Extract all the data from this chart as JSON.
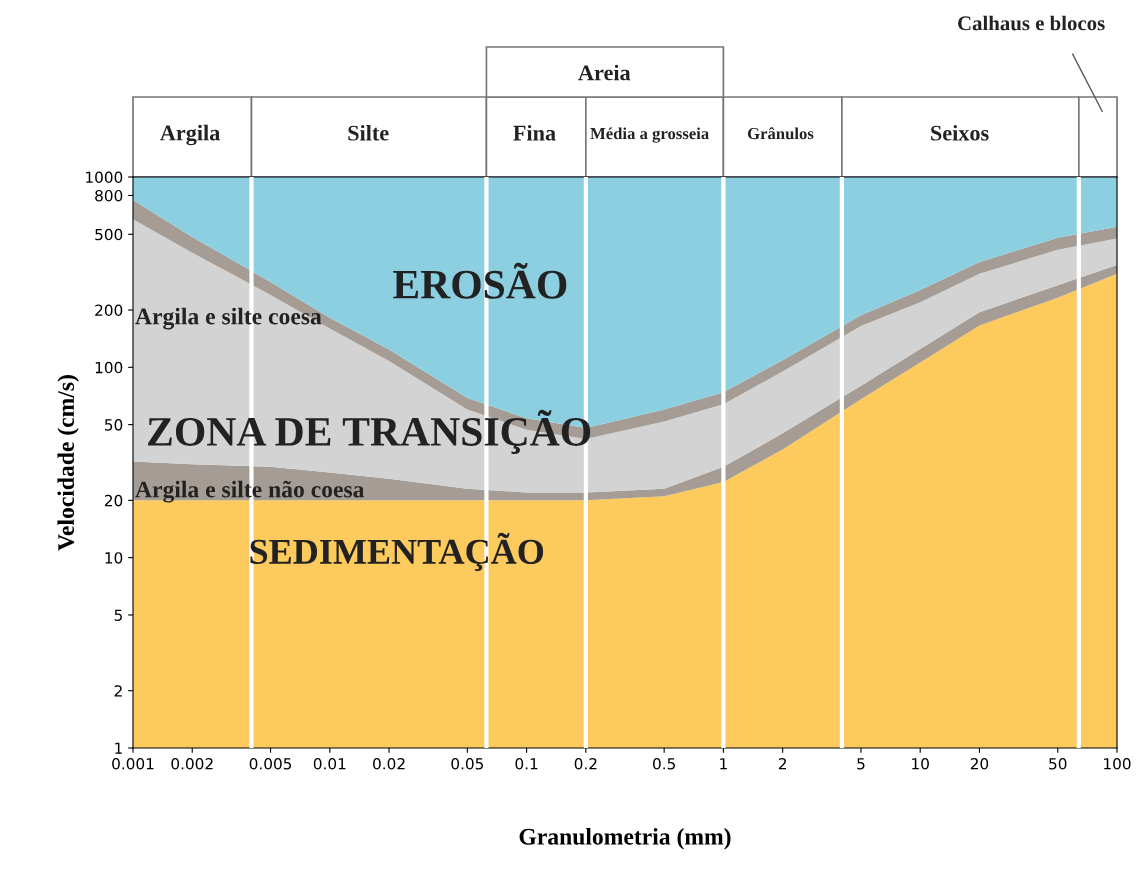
{
  "chart_data": {
    "type": "area",
    "xlabel": "Granulometria (mm)",
    "ylabel": "Velocidade (cm/s)",
    "log": "xy",
    "x": [
      0.001,
      0.002,
      0.005,
      0.01,
      0.02,
      0.05,
      0.1,
      0.2,
      0.5,
      1,
      2,
      5,
      10,
      20,
      50,
      100
    ],
    "series": [
      {
        "color": "#fdca5e",
        "values": [
          20,
          20,
          20,
          20,
          20,
          20,
          20,
          20,
          21,
          25,
          37,
          68,
          106,
          166,
          232,
          310
        ]
      },
      {
        "color": "#a59d95",
        "values": [
          12,
          11,
          10,
          8,
          6,
          3,
          2,
          2,
          2,
          5,
          8,
          12,
          19,
          29,
          38,
          35
        ]
      },
      {
        "color": "#d3d3d3",
        "values": [
          568,
          369,
          210,
          132,
          82,
          37,
          25,
          20,
          29,
          34,
          50,
          85,
          95,
          115,
          145,
          130
        ]
      },
      {
        "color": "#a59d95",
        "values": [
          158,
          84,
          41,
          22,
          16,
          9,
          7,
          6,
          8,
          10,
          14,
          23,
          35,
          48,
          64,
          72
        ]
      },
      {
        "color": "#8ccfe0",
        "values": [
          242,
          516,
          719,
          818,
          876,
          931,
          946,
          952,
          940,
          926,
          891,
          812,
          745,
          642,
          521,
          453
        ]
      }
    ],
    "stacked": true,
    "xlim": [
      0.001,
      100
    ],
    "ylim": [
      1,
      1000
    ],
    "xticks": [
      0.001,
      0.002,
      0.005,
      0.01,
      0.02,
      0.05,
      0.1,
      0.2,
      0.5,
      1,
      2,
      5,
      10,
      20,
      50,
      100
    ],
    "yticks": [
      1,
      2,
      5,
      10,
      20,
      50,
      100,
      200,
      500,
      800,
      1000
    ],
    "ref_lines": [
      {
        "axis": "x",
        "value": 0.004,
        "color": "#ffffff"
      },
      {
        "axis": "x",
        "value": 0.0625,
        "color": "#ffffff"
      },
      {
        "axis": "x",
        "value": 0.2,
        "color": "#ffffff"
      },
      {
        "axis": "x",
        "value": 1,
        "color": "#ffffff"
      },
      {
        "axis": "x",
        "value": 4,
        "color": "#ffffff"
      },
      {
        "axis": "x",
        "value": 64,
        "color": "#ffffff"
      }
    ],
    "annotations": [
      "EROSÃO",
      "Argila e silte coesa",
      "ZONA DE TRANSIÇÃO",
      "Argila e silte não coesa",
      "SEDIMENTAÇÃO",
      "Areia",
      "Argila",
      "Silte",
      "Fina",
      "Média a grosseia",
      "Grânulos",
      "Seixos",
      "Calhaus e blocos"
    ]
  }
}
